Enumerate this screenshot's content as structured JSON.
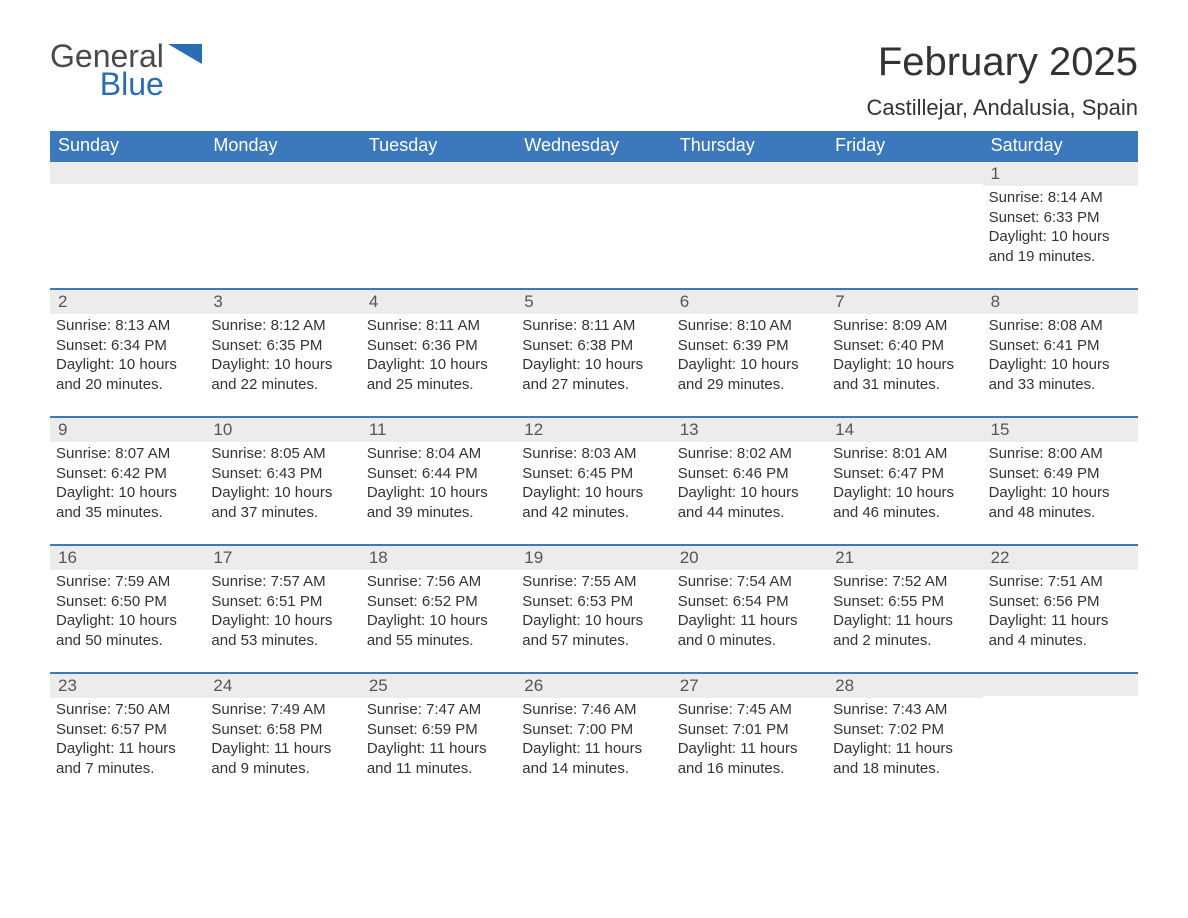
{
  "logo": {
    "text1": "General",
    "text2": "Blue",
    "shape_color": "#2a6db3"
  },
  "title": "February 2025",
  "location": "Castillejar, Andalusia, Spain",
  "colors": {
    "header_bg": "#3b78bc",
    "header_text": "#ffffff",
    "daybar_bg": "#ececec",
    "row_border": "#3b78bc",
    "body_text": "#333333",
    "page_bg": "#ffffff"
  },
  "weekdays": [
    "Sunday",
    "Monday",
    "Tuesday",
    "Wednesday",
    "Thursday",
    "Friday",
    "Saturday"
  ],
  "weeks": [
    [
      null,
      null,
      null,
      null,
      null,
      null,
      {
        "n": "1",
        "sunrise": "8:14 AM",
        "sunset": "6:33 PM",
        "dl1": "Daylight: 10 hours",
        "dl2": "and 19 minutes."
      }
    ],
    [
      {
        "n": "2",
        "sunrise": "8:13 AM",
        "sunset": "6:34 PM",
        "dl1": "Daylight: 10 hours",
        "dl2": "and 20 minutes."
      },
      {
        "n": "3",
        "sunrise": "8:12 AM",
        "sunset": "6:35 PM",
        "dl1": "Daylight: 10 hours",
        "dl2": "and 22 minutes."
      },
      {
        "n": "4",
        "sunrise": "8:11 AM",
        "sunset": "6:36 PM",
        "dl1": "Daylight: 10 hours",
        "dl2": "and 25 minutes."
      },
      {
        "n": "5",
        "sunrise": "8:11 AM",
        "sunset": "6:38 PM",
        "dl1": "Daylight: 10 hours",
        "dl2": "and 27 minutes."
      },
      {
        "n": "6",
        "sunrise": "8:10 AM",
        "sunset": "6:39 PM",
        "dl1": "Daylight: 10 hours",
        "dl2": "and 29 minutes."
      },
      {
        "n": "7",
        "sunrise": "8:09 AM",
        "sunset": "6:40 PM",
        "dl1": "Daylight: 10 hours",
        "dl2": "and 31 minutes."
      },
      {
        "n": "8",
        "sunrise": "8:08 AM",
        "sunset": "6:41 PM",
        "dl1": "Daylight: 10 hours",
        "dl2": "and 33 minutes."
      }
    ],
    [
      {
        "n": "9",
        "sunrise": "8:07 AM",
        "sunset": "6:42 PM",
        "dl1": "Daylight: 10 hours",
        "dl2": "and 35 minutes."
      },
      {
        "n": "10",
        "sunrise": "8:05 AM",
        "sunset": "6:43 PM",
        "dl1": "Daylight: 10 hours",
        "dl2": "and 37 minutes."
      },
      {
        "n": "11",
        "sunrise": "8:04 AM",
        "sunset": "6:44 PM",
        "dl1": "Daylight: 10 hours",
        "dl2": "and 39 minutes."
      },
      {
        "n": "12",
        "sunrise": "8:03 AM",
        "sunset": "6:45 PM",
        "dl1": "Daylight: 10 hours",
        "dl2": "and 42 minutes."
      },
      {
        "n": "13",
        "sunrise": "8:02 AM",
        "sunset": "6:46 PM",
        "dl1": "Daylight: 10 hours",
        "dl2": "and 44 minutes."
      },
      {
        "n": "14",
        "sunrise": "8:01 AM",
        "sunset": "6:47 PM",
        "dl1": "Daylight: 10 hours",
        "dl2": "and 46 minutes."
      },
      {
        "n": "15",
        "sunrise": "8:00 AM",
        "sunset": "6:49 PM",
        "dl1": "Daylight: 10 hours",
        "dl2": "and 48 minutes."
      }
    ],
    [
      {
        "n": "16",
        "sunrise": "7:59 AM",
        "sunset": "6:50 PM",
        "dl1": "Daylight: 10 hours",
        "dl2": "and 50 minutes."
      },
      {
        "n": "17",
        "sunrise": "7:57 AM",
        "sunset": "6:51 PM",
        "dl1": "Daylight: 10 hours",
        "dl2": "and 53 minutes."
      },
      {
        "n": "18",
        "sunrise": "7:56 AM",
        "sunset": "6:52 PM",
        "dl1": "Daylight: 10 hours",
        "dl2": "and 55 minutes."
      },
      {
        "n": "19",
        "sunrise": "7:55 AM",
        "sunset": "6:53 PM",
        "dl1": "Daylight: 10 hours",
        "dl2": "and 57 minutes."
      },
      {
        "n": "20",
        "sunrise": "7:54 AM",
        "sunset": "6:54 PM",
        "dl1": "Daylight: 11 hours",
        "dl2": "and 0 minutes."
      },
      {
        "n": "21",
        "sunrise": "7:52 AM",
        "sunset": "6:55 PM",
        "dl1": "Daylight: 11 hours",
        "dl2": "and 2 minutes."
      },
      {
        "n": "22",
        "sunrise": "7:51 AM",
        "sunset": "6:56 PM",
        "dl1": "Daylight: 11 hours",
        "dl2": "and 4 minutes."
      }
    ],
    [
      {
        "n": "23",
        "sunrise": "7:50 AM",
        "sunset": "6:57 PM",
        "dl1": "Daylight: 11 hours",
        "dl2": "and 7 minutes."
      },
      {
        "n": "24",
        "sunrise": "7:49 AM",
        "sunset": "6:58 PM",
        "dl1": "Daylight: 11 hours",
        "dl2": "and 9 minutes."
      },
      {
        "n": "25",
        "sunrise": "7:47 AM",
        "sunset": "6:59 PM",
        "dl1": "Daylight: 11 hours",
        "dl2": "and 11 minutes."
      },
      {
        "n": "26",
        "sunrise": "7:46 AM",
        "sunset": "7:00 PM",
        "dl1": "Daylight: 11 hours",
        "dl2": "and 14 minutes."
      },
      {
        "n": "27",
        "sunrise": "7:45 AM",
        "sunset": "7:01 PM",
        "dl1": "Daylight: 11 hours",
        "dl2": "and 16 minutes."
      },
      {
        "n": "28",
        "sunrise": "7:43 AM",
        "sunset": "7:02 PM",
        "dl1": "Daylight: 11 hours",
        "dl2": "and 18 minutes."
      },
      null
    ]
  ],
  "labels": {
    "sunrise_prefix": "Sunrise: ",
    "sunset_prefix": "Sunset: "
  }
}
